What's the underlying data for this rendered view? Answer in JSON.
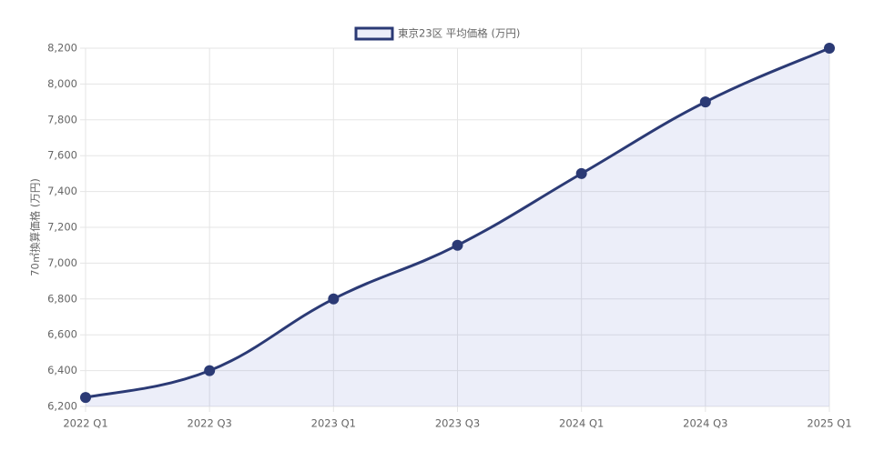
{
  "chart_data": {
    "type": "line",
    "y_axis_label": "70㎡換算価格 (万円)",
    "categories": [
      "2022 Q1",
      "2022 Q3",
      "2023 Q1",
      "2023 Q3",
      "2024 Q1",
      "2024 Q3",
      "2025 Q1"
    ],
    "series": [
      {
        "name": "東京23区 平均価格 (万円)",
        "color": "#2b3a75",
        "fill": "rgba(110,120,210,0.13)",
        "values": [
          6250,
          6400,
          6800,
          7100,
          7500,
          7900,
          8200
        ]
      }
    ],
    "ylim": [
      6200,
      8200
    ],
    "yticks": [
      {
        "value": 6200,
        "label": "6,200"
      },
      {
        "value": 6400,
        "label": "6,400"
      },
      {
        "value": 6600,
        "label": "6,600"
      },
      {
        "value": 6800,
        "label": "6,800"
      },
      {
        "value": 7000,
        "label": "7,000"
      },
      {
        "value": 7200,
        "label": "7,200"
      },
      {
        "value": 7400,
        "label": "7,400"
      },
      {
        "value": 7600,
        "label": "7,600"
      },
      {
        "value": 7800,
        "label": "7,800"
      },
      {
        "value": 8000,
        "label": "8,000"
      },
      {
        "value": 8200,
        "label": "8,200"
      }
    ],
    "grid": true,
    "legend": "top"
  }
}
